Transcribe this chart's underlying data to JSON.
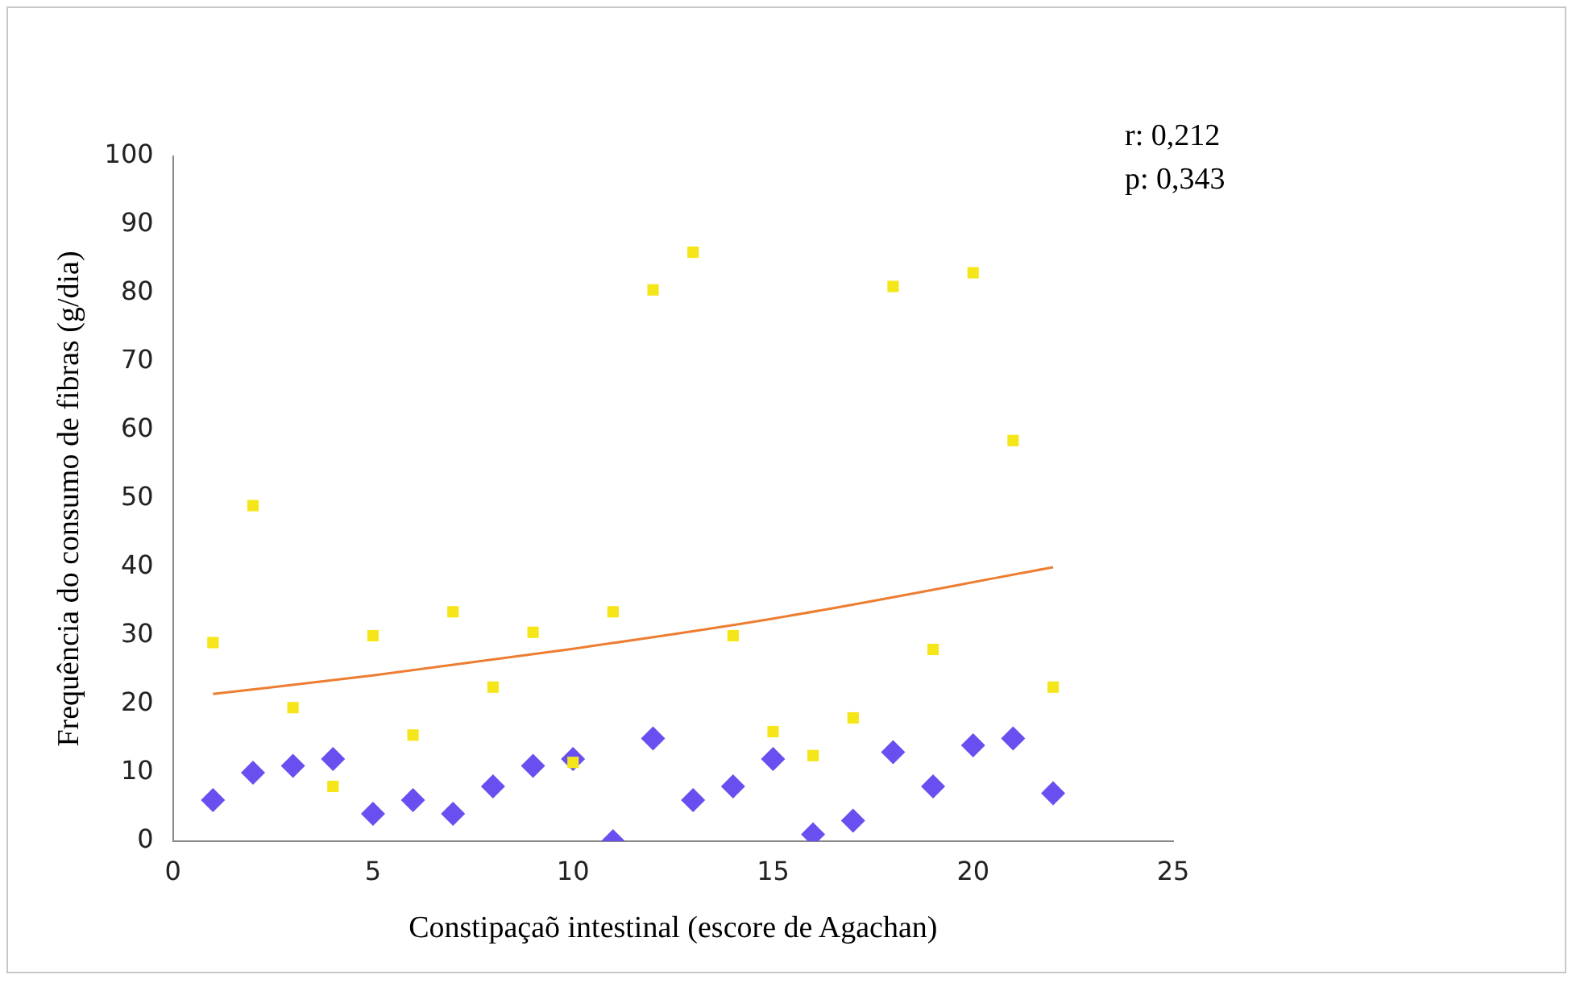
{
  "chart_data": {
    "type": "scatter",
    "xlabel": "Constipaçaõ intestinal (escore de Agachan)",
    "ylabel": "Frequência do consumo de fibras (g/dia)",
    "annotations": [
      "r: 0,212",
      "p: 0,343"
    ],
    "xlim": [
      0,
      25
    ],
    "xticks": [
      0,
      5,
      10,
      15,
      20,
      25
    ],
    "ylim": [
      0,
      100
    ],
    "yticks": [
      0,
      10,
      20,
      30,
      40,
      50,
      60,
      70,
      80,
      90,
      100
    ],
    "grid": false,
    "legend": false,
    "series": [
      {
        "type": "line",
        "color": "#ed7d31",
        "marker": "none",
        "x": [
          1,
          5,
          10,
          15,
          22
        ],
        "values": [
          21.5,
          24.2,
          28.1,
          32.5,
          40
        ]
      },
      {
        "color": "#6a4ff0",
        "marker": "diamond",
        "x": [
          1,
          2,
          3,
          4,
          5,
          6,
          7,
          8,
          9,
          10,
          11,
          12,
          13,
          14,
          15,
          16,
          17,
          18,
          19,
          20,
          21,
          22
        ],
        "values": [
          6,
          10,
          11,
          12,
          4,
          6,
          4,
          8,
          11,
          12,
          0,
          15,
          6,
          8,
          12,
          1,
          3,
          13,
          8,
          14,
          15,
          7
        ]
      },
      {
        "color": "#f5e61a",
        "marker": "square",
        "x": [
          1,
          2,
          3,
          4,
          5,
          6,
          7,
          8,
          9,
          10,
          11,
          12,
          13,
          14,
          15,
          16,
          17,
          18,
          19,
          20,
          21,
          22
        ],
        "values": [
          29,
          49,
          19.5,
          8,
          30,
          15.5,
          33.5,
          22.5,
          30.5,
          11.5,
          33.5,
          80.5,
          86,
          30,
          16,
          12.5,
          18,
          81,
          28,
          83,
          58.5,
          22.5
        ]
      }
    ]
  }
}
